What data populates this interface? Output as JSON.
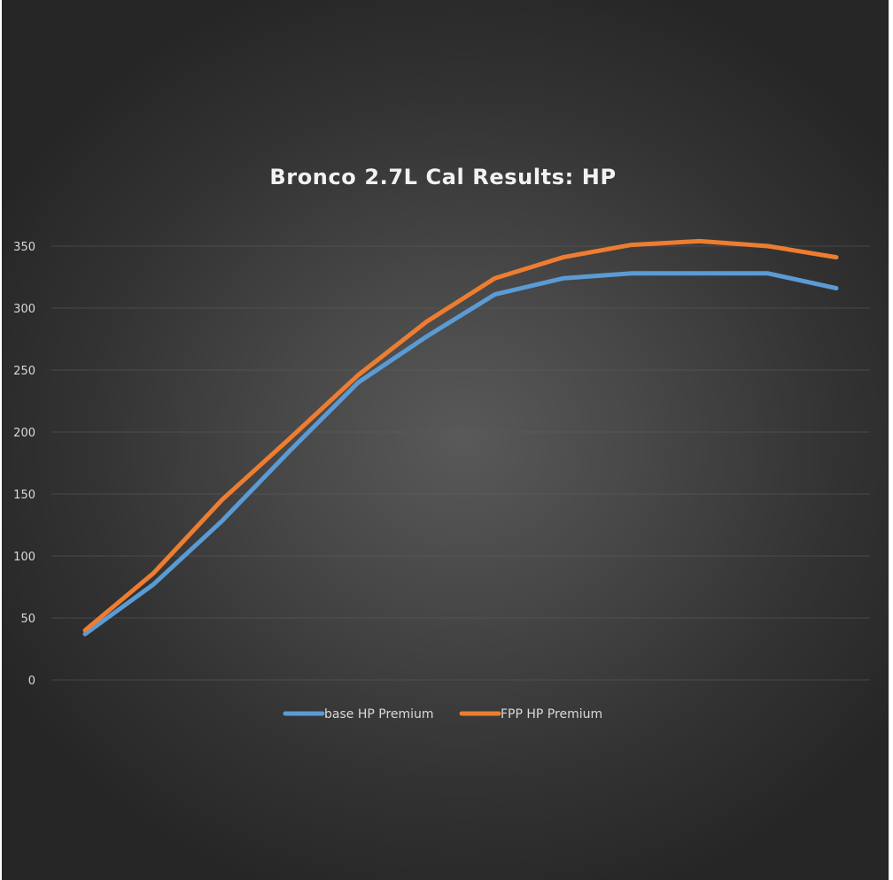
{
  "chart_data": {
    "type": "line",
    "title": "Bronco 2.7L Cal Results: HP",
    "xlabel": "",
    "ylabel": "",
    "ylim": [
      0,
      350
    ],
    "yticks": [
      0,
      50,
      100,
      150,
      200,
      250,
      300,
      350
    ],
    "grid": true,
    "legend_position": "bottom",
    "colors": {
      "base": "#5b9bd5",
      "fpp": "#ed7d31"
    },
    "x": [
      1,
      2,
      3,
      4,
      5,
      6,
      7,
      8,
      9,
      10,
      11,
      12
    ],
    "series": [
      {
        "name": "base HP Premium",
        "color": "#5b9bd5",
        "values": [
          37,
          77,
          128,
          185,
          240,
          277,
          311,
          324,
          328,
          328,
          328,
          316
        ]
      },
      {
        "name": "FPP HP Premium",
        "color": "#ed7d31",
        "values": [
          40,
          86,
          145,
          195,
          246,
          289,
          324,
          341,
          351,
          354,
          350,
          341
        ]
      }
    ]
  }
}
